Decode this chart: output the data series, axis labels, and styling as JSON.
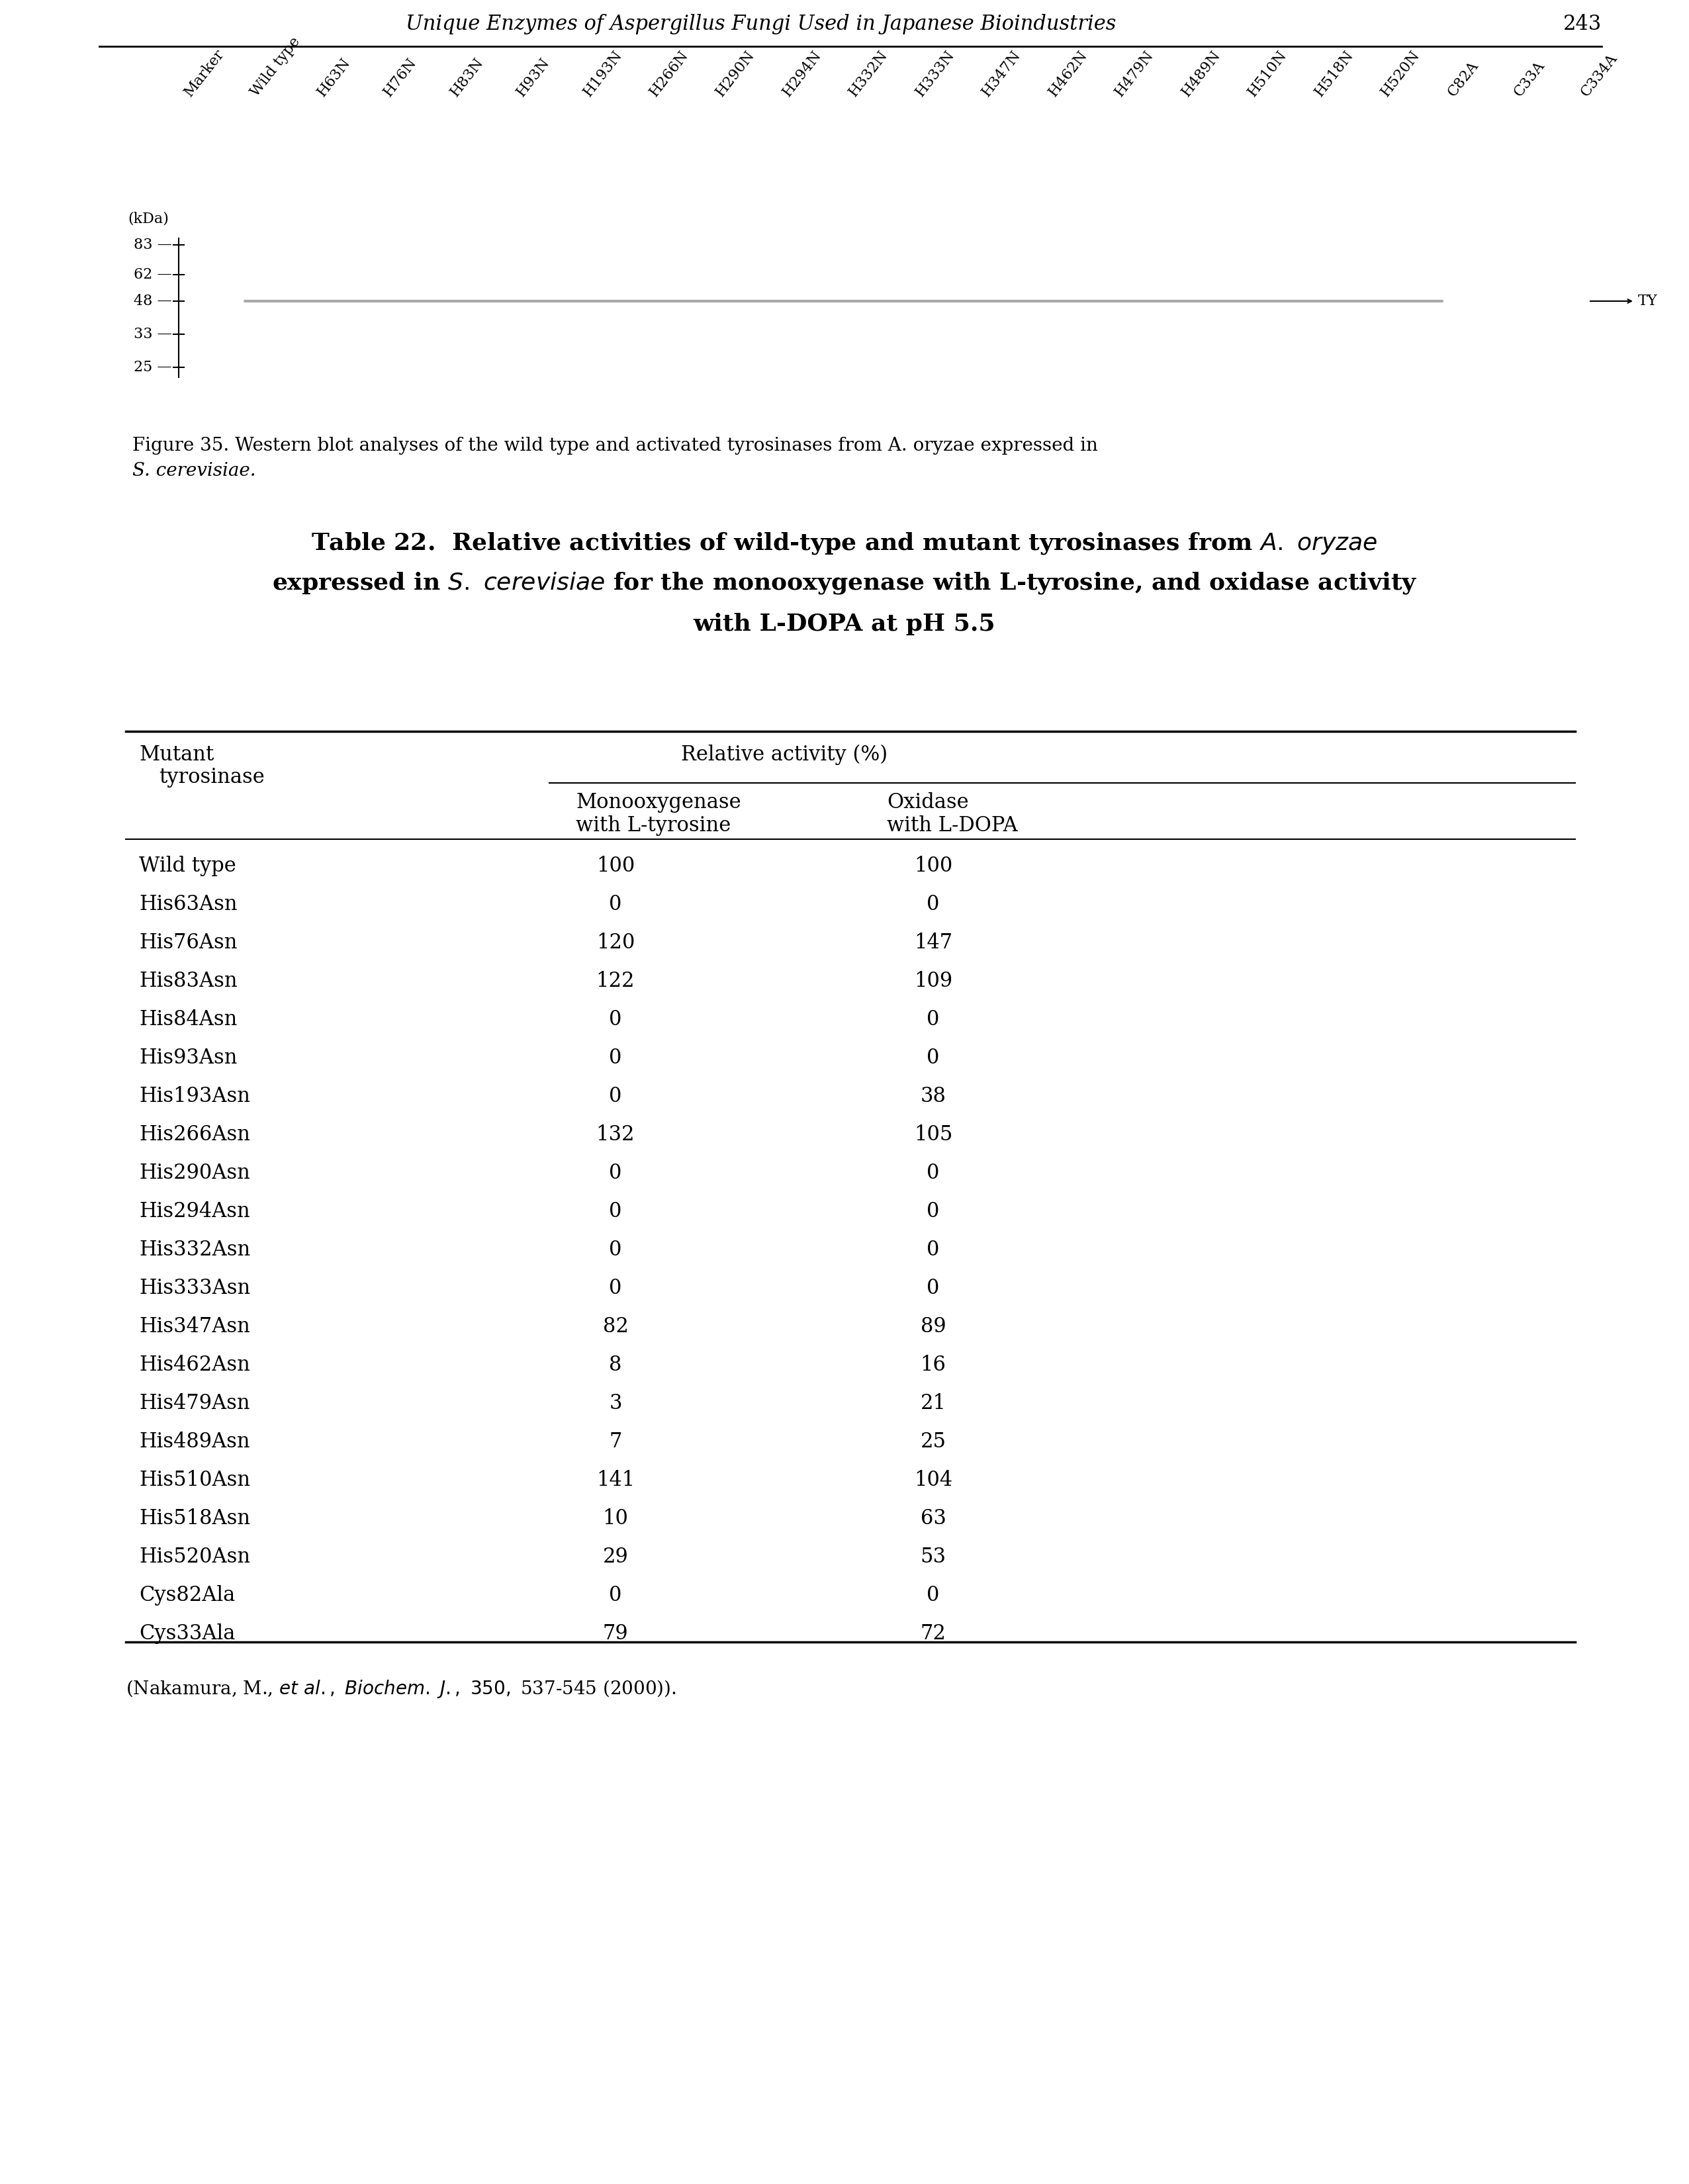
{
  "page_title": "Unique Enzymes of Aspergillus Fungi Used in Japanese Bioindustries",
  "page_number": "243",
  "figure_caption_1": "Figure 35. Western blot analyses of the wild type and activated tyrosinases from A. oryzae expressed in",
  "figure_caption_2": "S. cerevisiae.",
  "table_title_1": "Table 22.  Relative activities of wild-type and mutant tyrosinases from ",
  "table_title_1_italic": "A. oryzae",
  "table_title_2": "expressed in ",
  "table_title_2_italic": "S. cerevisiae",
  "table_title_2b": " for the monooxygenase with L-tyrosine, and oxidase activity",
  "table_title_3": "with L-DOPA at pH 5.5",
  "rows": [
    [
      "Wild type",
      "100",
      "100"
    ],
    [
      "His63Asn",
      "0",
      "0"
    ],
    [
      "His76Asn",
      "120",
      "147"
    ],
    [
      "His83Asn",
      "122",
      "109"
    ],
    [
      "His84Asn",
      "0",
      "0"
    ],
    [
      "His93Asn",
      "0",
      "0"
    ],
    [
      "His193Asn",
      "0",
      "38"
    ],
    [
      "His266Asn",
      "132",
      "105"
    ],
    [
      "His290Asn",
      "0",
      "0"
    ],
    [
      "His294Asn",
      "0",
      "0"
    ],
    [
      "His332Asn",
      "0",
      "0"
    ],
    [
      "His333Asn",
      "0",
      "0"
    ],
    [
      "His347Asn",
      "82",
      "89"
    ],
    [
      "His462Asn",
      "8",
      "16"
    ],
    [
      "His479Asn",
      "3",
      "21"
    ],
    [
      "His489Asn",
      "7",
      "25"
    ],
    [
      "His510Asn",
      "141",
      "104"
    ],
    [
      "His518Asn",
      "10",
      "63"
    ],
    [
      "His520Asn",
      "29",
      "53"
    ],
    [
      "Cys82Ala",
      "0",
      "0"
    ],
    [
      "Cys33Ala",
      "79",
      "72"
    ]
  ],
  "reference": "(Nakamura, M., ",
  "reference_italic": "et al., Biochem. J.,",
  "reference_italic2": " 350,",
  "reference_end": " 537-545 (2000)).",
  "lane_labels": [
    "Marker",
    "Wild type",
    "H63N",
    "H76N",
    "H83N",
    "H93N",
    "H193N",
    "H266N",
    "H290N",
    "H294N",
    "H332N",
    "H333N",
    "H347N",
    "H462N",
    "H479N",
    "H489N",
    "H510N",
    "H518N",
    "H520N",
    "C82A",
    "C33A",
    "C334A"
  ],
  "kda_labels": [
    "(kDa)",
    "83",
    "62",
    "48",
    "33",
    "25"
  ],
  "background_color": "#ffffff",
  "fs_page": 22,
  "fs_title": 26,
  "fs_header": 22,
  "fs_body": 22,
  "fs_caption": 20,
  "fs_blot": 16,
  "fs_ref": 20
}
